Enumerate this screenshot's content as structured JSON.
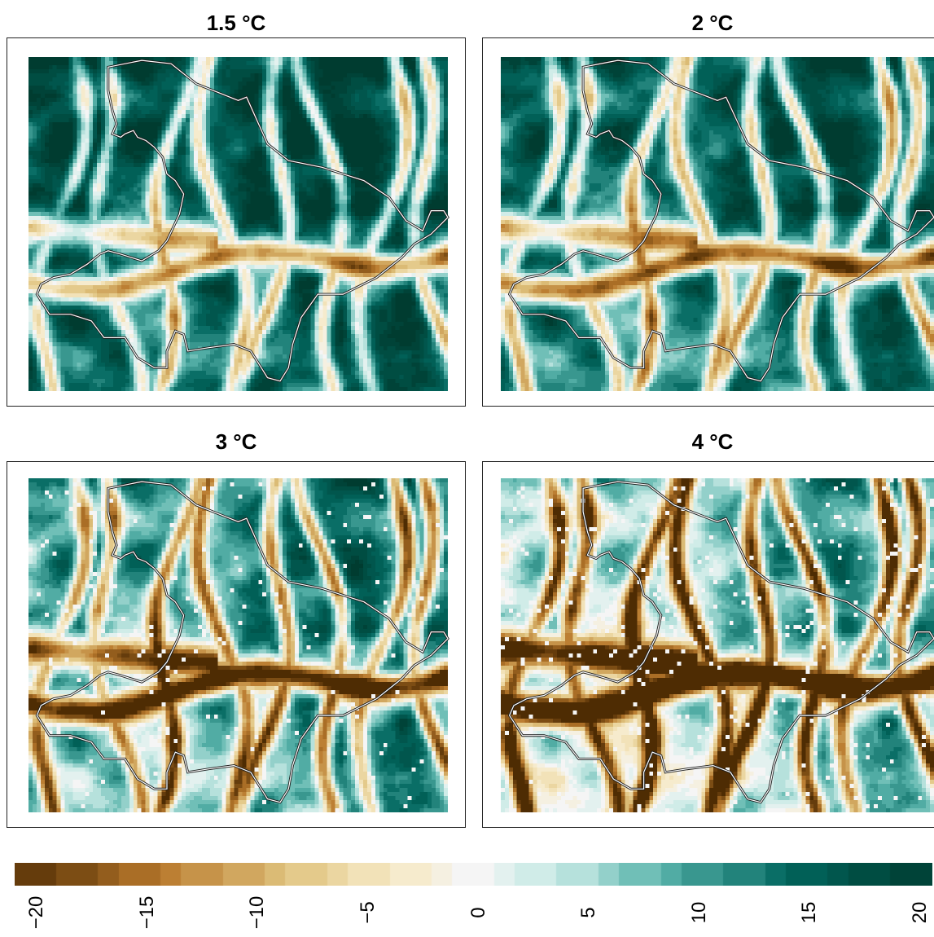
{
  "panels": [
    {
      "title": "1.5 °C",
      "warming": 1.5
    },
    {
      "title": "2 °C",
      "warming": 2
    },
    {
      "title": "3 °C",
      "warming": 3
    },
    {
      "title": "4 °C",
      "warming": 4
    }
  ],
  "legend": {
    "type": "colorbar",
    "ticks": [
      "−20",
      "−15",
      "−10",
      "−5",
      "0",
      "5",
      "10",
      "15",
      "20"
    ],
    "range": [
      -22,
      22
    ],
    "colors": {
      "brown_dark": "#543005",
      "brown_mid": "#b8782b",
      "tan": "#dfc27d",
      "cream": "#f6e8c3",
      "white": "#f5f5f5",
      "teal_light": "#c7eae5",
      "teal_mid": "#5ab4ac",
      "teal_dark": "#01665e",
      "teal_darkest": "#003c30"
    }
  }
}
